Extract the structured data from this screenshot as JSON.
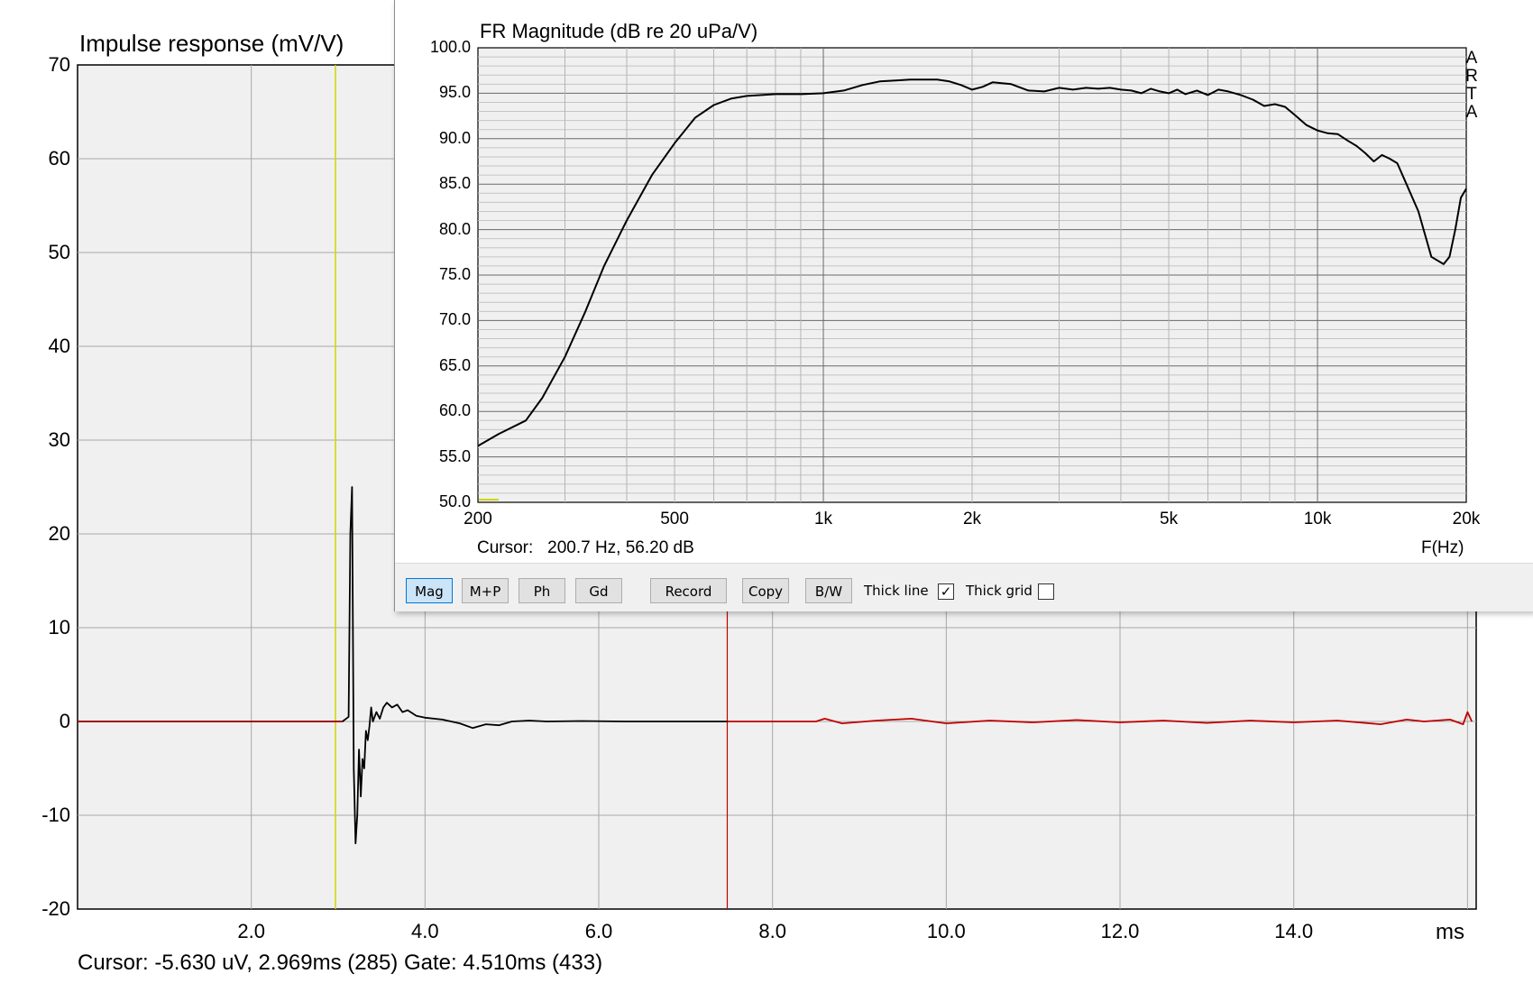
{
  "impulse": {
    "title": "Impulse response (mV/V)",
    "y_ticks": [
      "70",
      "60",
      "50",
      "40",
      "30",
      "20",
      "10",
      "0",
      "-10",
      "-20"
    ],
    "x_ticks": [
      "2.0",
      "4.0",
      "6.0",
      "8.0",
      "10.0",
      "12.0",
      "14.0"
    ],
    "x_unit": "ms",
    "status": "Cursor: -5.630 uV, 2.969ms (285)  Gate: 4.510ms (433)"
  },
  "fr": {
    "title": "FR Magnitude (dB re 20 uPa/V)",
    "y_ticks": [
      "100.0",
      "95.0",
      "90.0",
      "85.0",
      "80.0",
      "75.0",
      "70.0",
      "65.0",
      "60.0",
      "55.0",
      "50.0"
    ],
    "x_ticks": [
      "200",
      "500",
      "1k",
      "2k",
      "5k",
      "10k",
      "20k"
    ],
    "brand": [
      "A",
      "R",
      "T",
      "A"
    ],
    "cursor_text": "Cursor:   200.7 Hz, 56.20 dB",
    "x_unit": "F(Hz)"
  },
  "toolbar": {
    "mag": "Mag",
    "mp": "M+P",
    "ph": "Ph",
    "gd": "Gd",
    "record": "Record",
    "copy": "Copy",
    "bw": "B/W",
    "thick_line": "Thick line",
    "thick_line_checked": "✓",
    "thick_grid": "Thick grid"
  },
  "colors": {
    "plot_bg": "#f0f0f0",
    "grid": "#a8a8a8",
    "trace": "#000000",
    "gated_trace": "#c00000",
    "cursor": "#d4d400",
    "gate_marker": "#c00000"
  },
  "chart_data": [
    {
      "type": "line",
      "title": "Impulse response (mV/V)",
      "xlabel": "ms",
      "xlim": [
        0,
        16.1
      ],
      "ylim": [
        -20,
        70
      ],
      "cursor_x": 2.969,
      "gate_x": 7.479,
      "series": [
        {
          "x": [
            0,
            3.05,
            3.12,
            3.14,
            3.16,
            3.18,
            3.2,
            3.22,
            3.24,
            3.26,
            3.28,
            3.3,
            3.32,
            3.34,
            3.36,
            3.38,
            3.4,
            3.44,
            3.48,
            3.52,
            3.56,
            3.62,
            3.68,
            3.74,
            3.8,
            3.9,
            4.0,
            4.2,
            4.4,
            4.55,
            4.7,
            4.85,
            5.0,
            5.2,
            5.4,
            5.8,
            6.3,
            7.0,
            7.48
          ],
          "y": [
            0,
            0,
            0.5,
            20,
            25,
            -5,
            -13,
            -10,
            -3,
            -8,
            -4,
            -5,
            -1,
            -2,
            -0.5,
            1.5,
            0,
            1,
            0.3,
            1.5,
            2,
            1.5,
            1.8,
            1,
            1.2,
            0.6,
            0.4,
            0.2,
            -0.2,
            -0.7,
            -0.3,
            -0.4,
            0,
            0.1,
            0,
            0.05,
            0,
            0,
            0
          ]
        },
        {
          "x": [
            7.48,
            8.0,
            8.5,
            8.6,
            8.8,
            9.2,
            9.6,
            10.0,
            10.5,
            11.0,
            11.5,
            12.0,
            12.5,
            13.0,
            13.5,
            14.0,
            14.5,
            15.0,
            15.3,
            15.5,
            15.8,
            15.95,
            16.0,
            16.05
          ],
          "y": [
            0,
            0,
            0,
            0.3,
            -0.2,
            0.1,
            0.3,
            -0.2,
            0.1,
            -0.1,
            0.15,
            -0.1,
            0.1,
            -0.15,
            0.1,
            -0.1,
            0.1,
            -0.3,
            0.2,
            0,
            0.2,
            -0.3,
            1.0,
            0
          ]
        }
      ]
    },
    {
      "type": "line",
      "title": "FR Magnitude (dB re 20 uPa/V)",
      "xlabel": "F(Hz)",
      "xscale": "log",
      "xlim": [
        200,
        20000
      ],
      "ylim": [
        50,
        100
      ],
      "grid": true,
      "series": [
        {
          "x": [
            200,
            220,
            250,
            270,
            300,
            330,
            360,
            400,
            450,
            500,
            550,
            600,
            650,
            700,
            750,
            800,
            900,
            1000,
            1100,
            1200,
            1300,
            1400,
            1500,
            1600,
            1700,
            1800,
            1900,
            2000,
            2100,
            2200,
            2400,
            2600,
            2800,
            3000,
            3200,
            3400,
            3600,
            3800,
            4000,
            4200,
            4400,
            4600,
            4800,
            5000,
            5200,
            5400,
            5700,
            6000,
            6300,
            6600,
            7000,
            7400,
            7800,
            8200,
            8600,
            9000,
            9500,
            10000,
            10500,
            11000,
            11500,
            12000,
            12500,
            13000,
            13500,
            14000,
            14500,
            15000,
            16000,
            17000,
            18000,
            18500,
            19000,
            19500,
            20000
          ],
          "y": [
            56.2,
            57.5,
            59,
            61.5,
            66,
            71,
            76,
            81,
            86,
            89.5,
            92.3,
            93.7,
            94.4,
            94.7,
            94.8,
            94.9,
            94.9,
            95.0,
            95.3,
            95.9,
            96.3,
            96.4,
            96.5,
            96.5,
            96.5,
            96.3,
            95.9,
            95.4,
            95.7,
            96.2,
            96.0,
            95.3,
            95.2,
            95.6,
            95.4,
            95.6,
            95.5,
            95.6,
            95.4,
            95.3,
            95.0,
            95.5,
            95.2,
            95.0,
            95.4,
            94.9,
            95.3,
            94.8,
            95.4,
            95.2,
            94.8,
            94.3,
            93.6,
            93.8,
            93.5,
            92.6,
            91.5,
            90.9,
            90.6,
            90.5,
            89.8,
            89.2,
            88.4,
            87.5,
            88.2,
            87.8,
            87.3,
            85.5,
            82,
            77,
            76.2,
            77,
            80,
            83.5,
            84.5
          ]
        }
      ],
      "cursor_x": 200.7
    }
  ]
}
